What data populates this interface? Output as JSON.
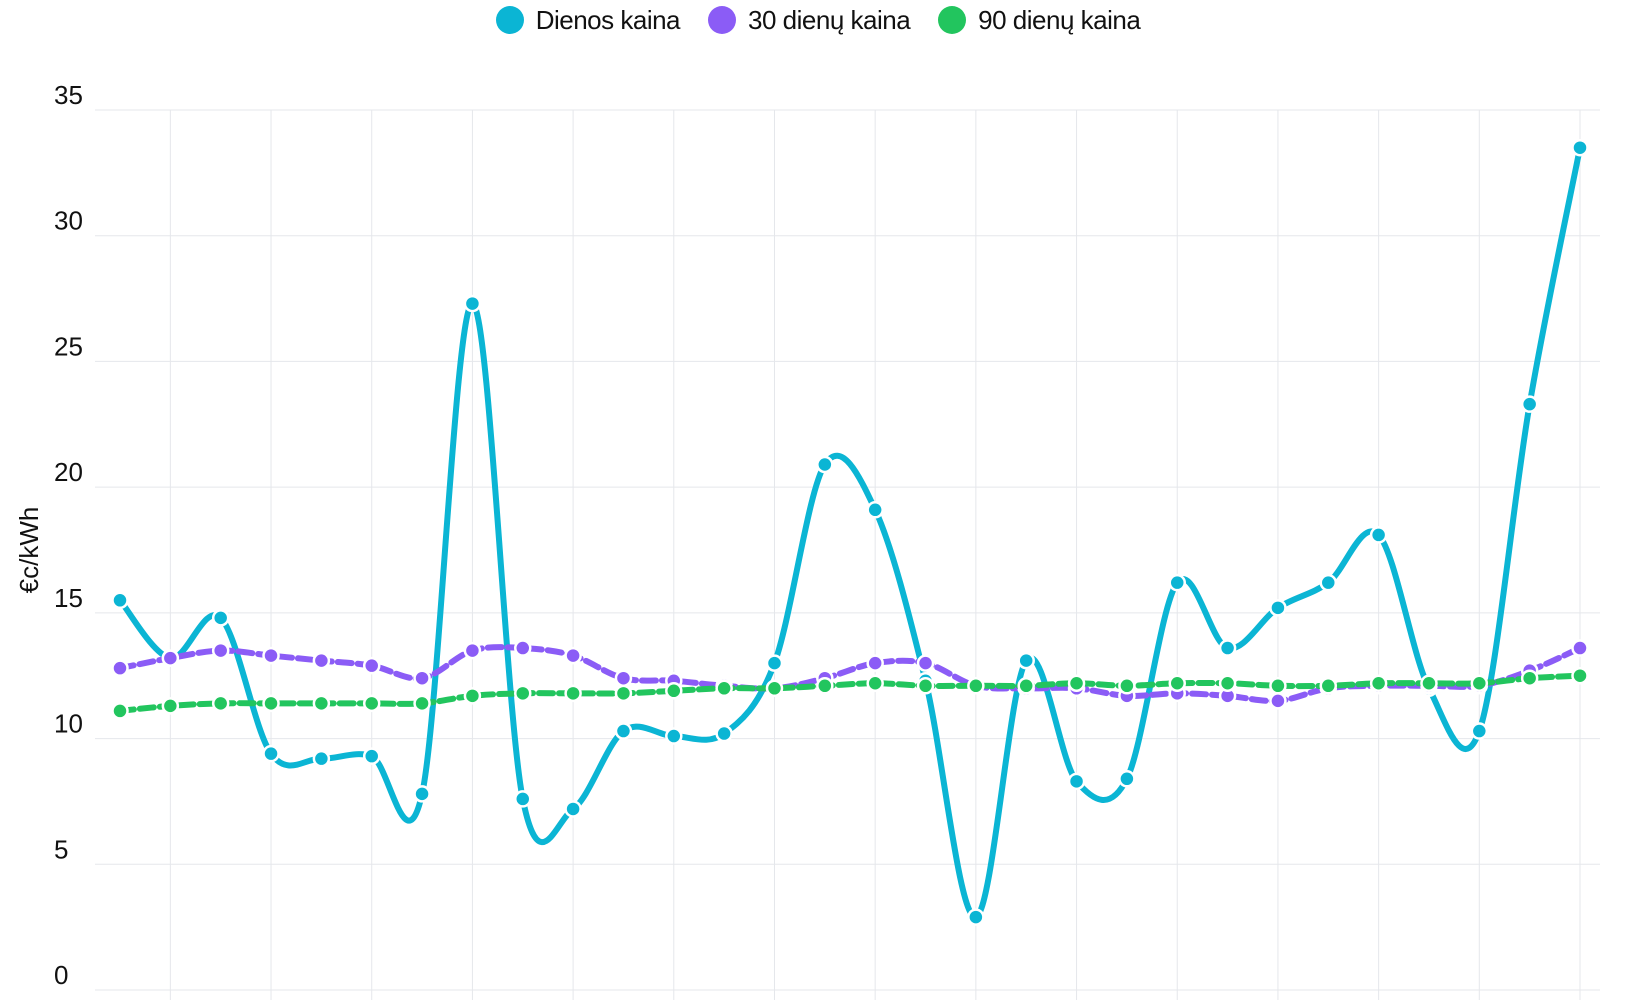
{
  "chart_data": {
    "type": "line",
    "title": "",
    "xlabel": "",
    "ylabel": "€c/kWh",
    "ylim": [
      0,
      35
    ],
    "yticks": [
      "0",
      "5",
      "10",
      "15",
      "20",
      "25",
      "30",
      "35"
    ],
    "grid": true,
    "legend_position": "top-center",
    "x": [
      1,
      2,
      3,
      4,
      5,
      6,
      7,
      8,
      9,
      10,
      11,
      12,
      13,
      14,
      15,
      16,
      17,
      18,
      19,
      20,
      21,
      22,
      23,
      24,
      25,
      26,
      27,
      28,
      29,
      30
    ],
    "series": [
      {
        "name": "Dienos kaina",
        "color": "#0bb5d4",
        "dashed": false,
        "values": [
          15.5,
          13.2,
          14.8,
          9.4,
          9.2,
          9.3,
          7.8,
          27.3,
          7.6,
          7.2,
          10.3,
          10.1,
          10.2,
          13.0,
          20.9,
          19.1,
          12.3,
          2.9,
          13.1,
          8.3,
          8.4,
          16.2,
          13.6,
          15.2,
          16.2,
          18.1,
          12.0,
          10.3,
          23.3,
          33.5
        ],
        "marker_color": "#0bb5d4"
      },
      {
        "name": "30 dienų kaina",
        "color": "#8b5cf6",
        "dashed": true,
        "values": [
          12.8,
          13.2,
          13.5,
          13.3,
          13.1,
          12.9,
          12.4,
          13.5,
          13.6,
          13.3,
          12.4,
          12.3,
          12.1,
          12.0,
          12.4,
          13.0,
          13.0,
          12.1,
          12.0,
          12.0,
          11.7,
          11.8,
          11.7,
          11.5,
          12.0,
          12.1,
          12.1,
          12.1,
          12.7,
          13.6
        ]
      },
      {
        "name": "90 dienų kaina",
        "color": "#22c55e",
        "dashed": true,
        "values": [
          11.1,
          11.3,
          11.4,
          11.4,
          11.4,
          11.4,
          11.4,
          11.7,
          11.8,
          11.8,
          11.8,
          11.9,
          12.0,
          12.0,
          12.1,
          12.2,
          12.1,
          12.1,
          12.1,
          12.2,
          12.1,
          12.2,
          12.2,
          12.1,
          12.1,
          12.2,
          12.2,
          12.2,
          12.4,
          12.5
        ]
      }
    ]
  }
}
